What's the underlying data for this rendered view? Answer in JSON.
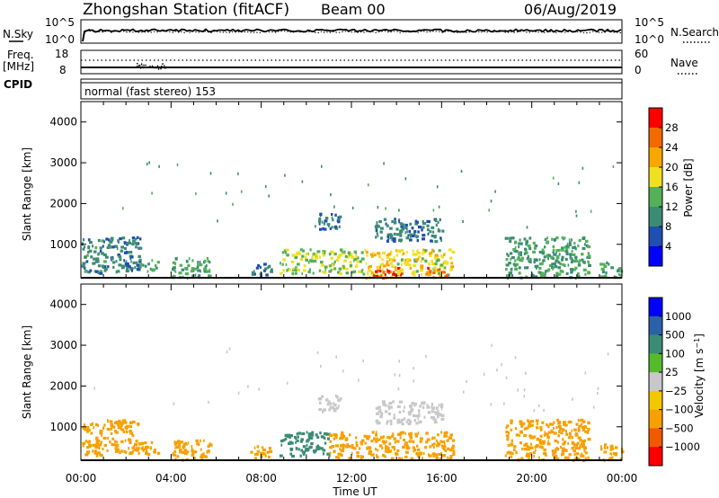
{
  "header": {
    "station": "Zhongshan Station (fitACF)",
    "beam": "Beam 00",
    "date": "06/Aug/2019"
  },
  "noise_panel": {
    "left_label": "N.Sky",
    "right_label": "N.Search",
    "left_ticks": [
      "10^5",
      "10^0"
    ],
    "right_ticks": [
      "10^5",
      "10^0"
    ]
  },
  "freq_panel": {
    "left_label_top": "Freq.",
    "left_label_unit": "[MHz]",
    "right_label": "Nave",
    "left_ticks": [
      "18",
      "8"
    ],
    "right_ticks": [
      "60",
      "0"
    ]
  },
  "cpid_panel": {
    "label": "CPID",
    "text": "normal (fast stereo) 153"
  },
  "colors": {
    "power_scale": [
      "#0000ff",
      "#1f4fb0",
      "#3c8c74",
      "#55b05a",
      "#f0e020",
      "#f7a800",
      "#f26a00",
      "#ff0000"
    ],
    "velocity_scale": [
      "#ff0000",
      "#f25a00",
      "#f7a000",
      "#f2c800",
      "#c8c8c8",
      "#55bb2a",
      "#3c8c74",
      "#2a62a8",
      "#0000ff"
    ]
  },
  "chart_data": [
    {
      "type": "heatmap",
      "name": "power",
      "ylabel": "Slant Range [km]",
      "yticks": [
        "1000",
        "2000",
        "3000",
        "4000"
      ],
      "ylim": [
        180,
        4500
      ],
      "xlim": [
        0,
        24
      ],
      "colorbar_label": "Power [dB]",
      "colorbar_ticks": [
        "28",
        "24",
        "20",
        "16",
        "12",
        "8",
        "4"
      ],
      "clim": [
        0,
        32
      ],
      "echo_regions": [
        {
          "t0": 0.0,
          "t1": 1.0,
          "r0": 300,
          "r1": 1150,
          "value": 10
        },
        {
          "t0": 1.0,
          "t1": 2.6,
          "r0": 350,
          "r1": 1200,
          "value": 9
        },
        {
          "t0": 2.6,
          "t1": 3.4,
          "r0": 300,
          "r1": 650,
          "value": 12
        },
        {
          "t0": 4.0,
          "t1": 5.7,
          "r0": 200,
          "r1": 700,
          "value": 12
        },
        {
          "t0": 7.5,
          "t1": 8.5,
          "r0": 250,
          "r1": 550,
          "value": 8
        },
        {
          "t0": 8.8,
          "t1": 12.5,
          "r0": 300,
          "r1": 900,
          "value": 15
        },
        {
          "t0": 12.5,
          "t1": 14.0,
          "r0": 200,
          "r1": 900,
          "value": 20
        },
        {
          "t0": 13.0,
          "t1": 14.2,
          "r0": 200,
          "r1": 500,
          "value": 27
        },
        {
          "t0": 14.0,
          "t1": 16.5,
          "r0": 250,
          "r1": 900,
          "value": 18
        },
        {
          "t0": 15.2,
          "t1": 16.2,
          "r0": 200,
          "r1": 450,
          "value": 26
        },
        {
          "t0": 10.5,
          "t1": 11.5,
          "r0": 1350,
          "r1": 1800,
          "value": 8
        },
        {
          "t0": 13.0,
          "t1": 16.0,
          "r0": 1100,
          "r1": 1650,
          "value": 9
        },
        {
          "t0": 18.8,
          "t1": 22.5,
          "r0": 200,
          "r1": 1200,
          "value": 12
        },
        {
          "t0": 23.0,
          "t1": 24.0,
          "r0": 200,
          "r1": 600,
          "value": 12
        }
      ]
    },
    {
      "type": "heatmap",
      "name": "velocity",
      "ylabel": "Slant Range [km]",
      "yticks": [
        "1000",
        "2000",
        "3000",
        "4000"
      ],
      "ylim": [
        180,
        4500
      ],
      "xlabel": "Time UT",
      "xticks": [
        "00:00",
        "04:00",
        "08:00",
        "12:00",
        "16:00",
        "20:00",
        "00:00"
      ],
      "xlim": [
        0,
        24
      ],
      "colorbar_label": "Velocity [m s^-1]",
      "colorbar_ticks": [
        "1000",
        "500",
        "100",
        "25",
        "−25",
        "−100",
        "−500",
        "−1000"
      ],
      "echo_regions": [
        {
          "t0": 0.0,
          "t1": 1.0,
          "r0": 300,
          "r1": 1150,
          "value": -300
        },
        {
          "t0": 1.0,
          "t1": 2.6,
          "r0": 350,
          "r1": 1200,
          "value": -200
        },
        {
          "t0": 2.6,
          "t1": 3.4,
          "r0": 300,
          "r1": 650,
          "value": -150
        },
        {
          "t0": 4.0,
          "t1": 5.7,
          "r0": 200,
          "r1": 700,
          "value": -300
        },
        {
          "t0": 7.5,
          "t1": 8.5,
          "r0": 250,
          "r1": 550,
          "value": -200
        },
        {
          "t0": 8.8,
          "t1": 11.0,
          "r0": 300,
          "r1": 900,
          "value": 150
        },
        {
          "t0": 11.0,
          "t1": 16.5,
          "r0": 250,
          "r1": 900,
          "value": -300
        },
        {
          "t0": 10.5,
          "t1": 11.5,
          "r0": 1350,
          "r1": 1800,
          "value": 0
        },
        {
          "t0": 13.0,
          "t1": 16.0,
          "r0": 1100,
          "r1": 1650,
          "value": 0
        },
        {
          "t0": 18.8,
          "t1": 22.5,
          "r0": 200,
          "r1": 1200,
          "value": -200
        },
        {
          "t0": 23.0,
          "t1": 24.0,
          "r0": 200,
          "r1": 600,
          "value": -300
        }
      ]
    }
  ]
}
